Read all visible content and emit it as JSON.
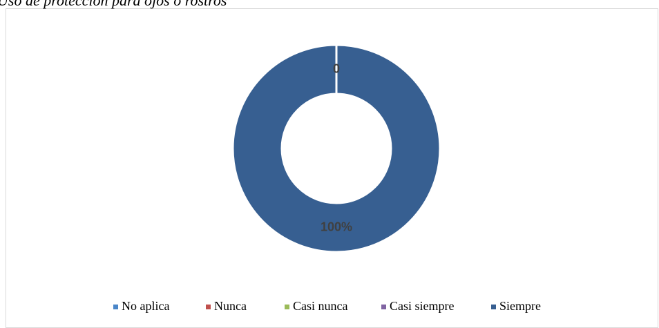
{
  "chart_data": {
    "type": "donut",
    "title": "Uso de protección para ojos o rostros",
    "categories": [
      "No aplica",
      "Nunca",
      "Casi nunca",
      "Casi siempre",
      "Siempre"
    ],
    "values": [
      0,
      0,
      0,
      0,
      100
    ],
    "value_labels": [
      null,
      null,
      null,
      "0",
      "100%"
    ],
    "colors": [
      "#4a86c8",
      "#c0504d",
      "#9bbb59",
      "#8064a2",
      "#375f91"
    ],
    "legend": "bottom"
  }
}
